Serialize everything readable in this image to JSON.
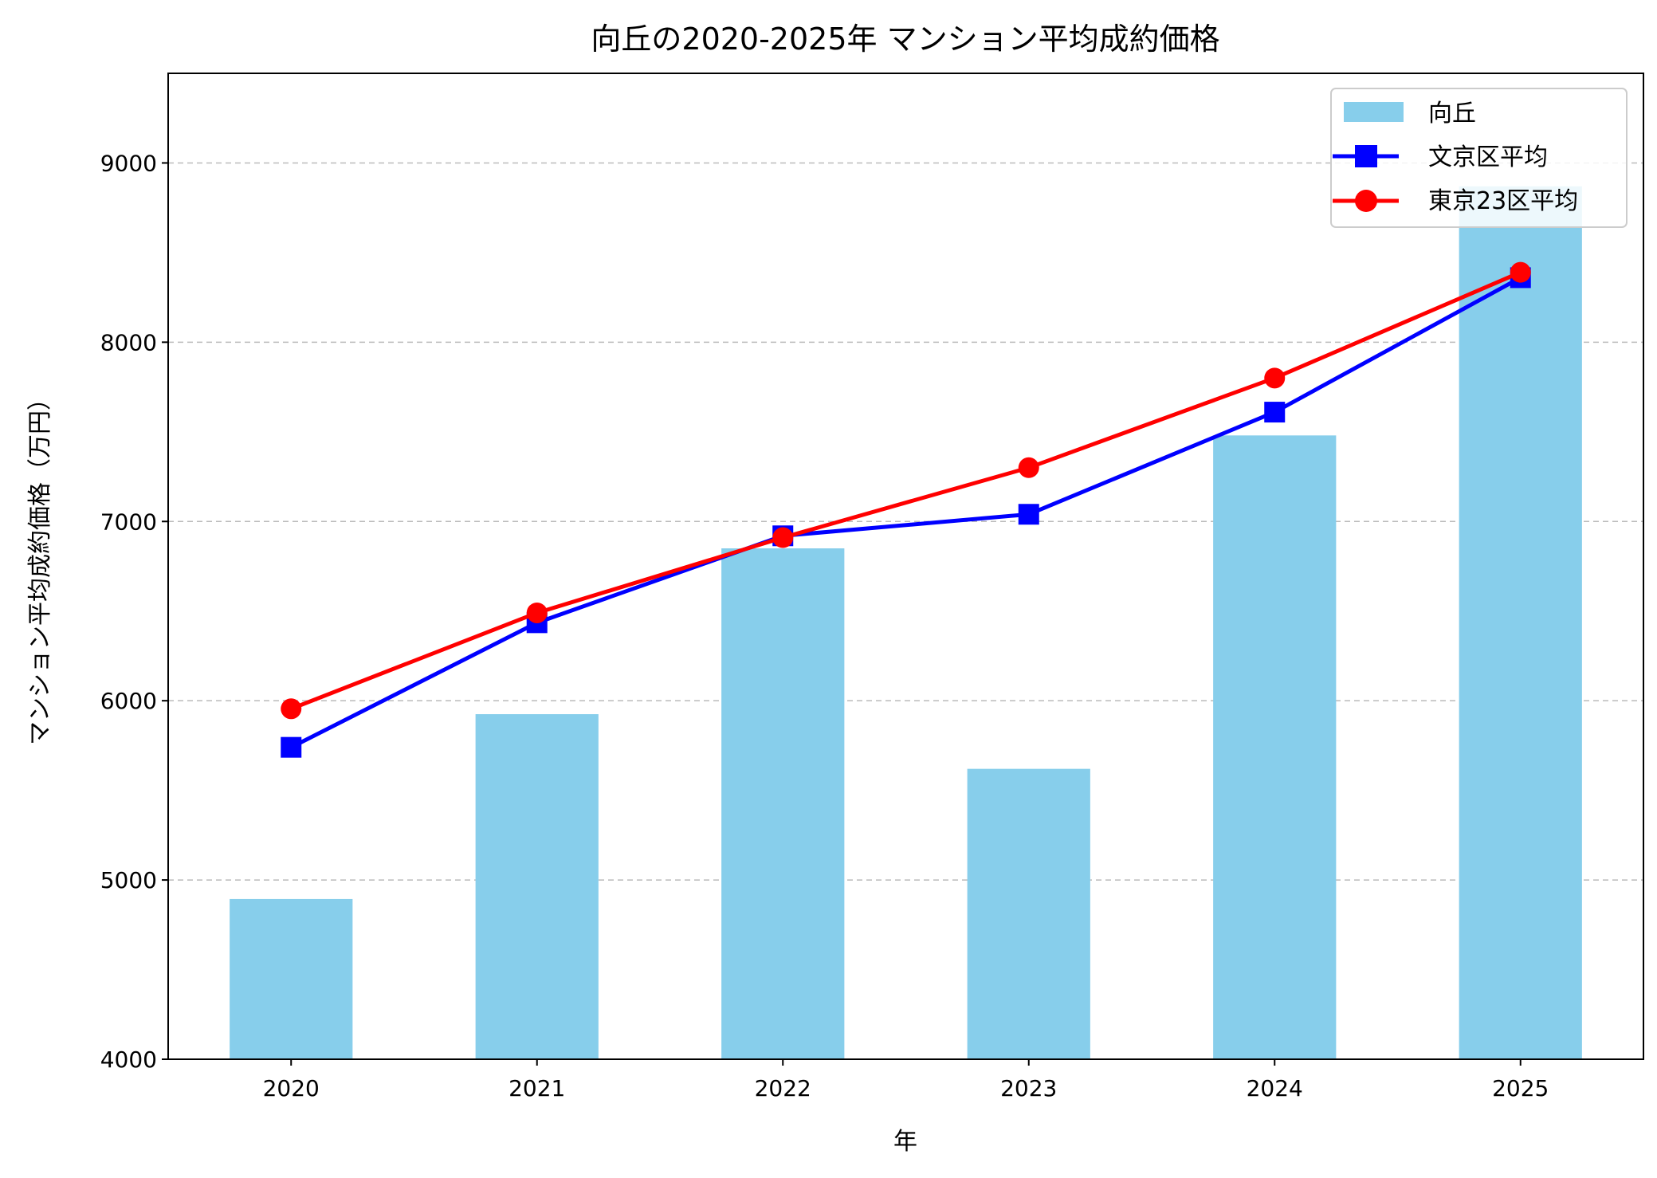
{
  "chart_data": {
    "type": "bar+line",
    "title": "向丘の2020-2025年 マンション平均成約価格",
    "xlabel": "年",
    "ylabel": "マンション平均成約価格（万円）",
    "categories": [
      "2020",
      "2021",
      "2022",
      "2023",
      "2024",
      "2025"
    ],
    "ylim": [
      4000,
      9500
    ],
    "yticks": [
      4000,
      5000,
      6000,
      7000,
      8000,
      9000
    ],
    "grid": "y-dashed",
    "legend_position": "top-right",
    "series": [
      {
        "name": "向丘",
        "kind": "bar",
        "color": "#87CEEB",
        "values": [
          4894,
          5925,
          6850,
          5620,
          7480,
          8870
        ]
      },
      {
        "name": "文京区平均",
        "kind": "line",
        "marker": "square",
        "color": "#0000FF",
        "values": [
          5740,
          6435,
          6920,
          7040,
          7610,
          8360
        ]
      },
      {
        "name": "東京23区平均",
        "kind": "line",
        "marker": "circle",
        "color": "#FF0000",
        "values": [
          5955,
          6490,
          6910,
          7300,
          7800,
          8390
        ]
      }
    ]
  }
}
